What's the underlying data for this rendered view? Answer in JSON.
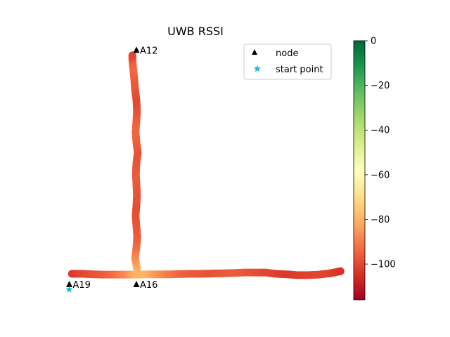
{
  "chart_data": {
    "type": "scatter",
    "title": "UWB RSSI",
    "xlabel": "",
    "ylabel": "",
    "axes_visible": false,
    "grid": false,
    "legend": {
      "position": "top-right",
      "entries": [
        {
          "label": "node",
          "marker": "triangle",
          "color": "#000000"
        },
        {
          "label": "start point",
          "marker": "star",
          "color": "#17becf"
        }
      ]
    },
    "nodes": [
      {
        "label": "A12",
        "x": 0,
        "y": 8.5
      },
      {
        "label": "A19",
        "x": -2.5,
        "y": -0.4
      },
      {
        "label": "A16",
        "x": 0,
        "y": -0.4
      }
    ],
    "start_point": {
      "x": -2.5,
      "y": -0.6
    },
    "colorbar": {
      "colormap": "RdYlGn",
      "range": [
        -116,
        0
      ],
      "ticks": [
        0,
        -20,
        -40,
        -60,
        -80,
        -100
      ]
    },
    "series": [
      {
        "segment": "horizontal",
        "x": [
          -2.4,
          -2.0,
          -1.6,
          -1.2,
          -0.8,
          -0.4,
          0.0,
          0.4,
          0.8,
          1.2,
          1.6,
          2.0,
          2.4,
          2.8,
          3.2,
          3.6,
          4.0,
          4.4,
          4.8,
          5.2,
          5.6,
          6.0,
          6.4,
          6.8,
          7.2,
          7.6
        ],
        "y": [
          0.0,
          0.0,
          -0.02,
          -0.03,
          -0.03,
          -0.03,
          -0.03,
          -0.02,
          -0.02,
          -0.02,
          -0.01,
          0.0,
          0.0,
          0.01,
          0.02,
          0.03,
          0.05,
          0.05,
          0.05,
          0.0,
          -0.02,
          -0.05,
          -0.05,
          -0.03,
          0.02,
          0.1
        ],
        "rssi": [
          -103,
          -100,
          -98,
          -96,
          -93,
          -88,
          -80,
          -80,
          -86,
          -90,
          -94,
          -96,
          -97,
          -98,
          -97,
          -96,
          -97,
          -98,
          -100,
          -101,
          -103,
          -102,
          -101,
          -100,
          -101,
          -104
        ]
      },
      {
        "segment": "vertical",
        "x": [
          0.02,
          -0.05,
          0.0,
          0.03,
          0.0,
          -0.03,
          0.0,
          0.02,
          0.0,
          -0.02,
          0.0,
          0.05,
          0.0,
          -0.03,
          0.0,
          0.02,
          0.0,
          -0.05,
          -0.08,
          -0.12,
          -0.15,
          -0.15
        ],
        "y": [
          0.2,
          0.6,
          1.0,
          1.4,
          1.8,
          2.2,
          2.6,
          3.0,
          3.4,
          3.8,
          4.2,
          4.6,
          5.0,
          5.4,
          5.8,
          6.2,
          6.6,
          7.0,
          7.4,
          7.8,
          8.1,
          8.3
        ],
        "rssi": [
          -80,
          -86,
          -92,
          -96,
          -97,
          -98,
          -99,
          -98,
          -97,
          -96,
          -97,
          -98,
          -96,
          -94,
          -95,
          -98,
          -100,
          -98,
          -96,
          -94,
          -95,
          -100
        ]
      }
    ]
  }
}
